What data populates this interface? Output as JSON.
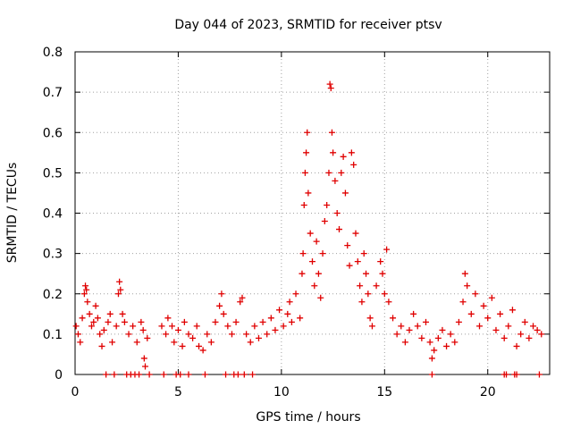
{
  "chart_data": {
    "type": "scatter",
    "title": "Day 044 of 2023, SRMTID for receiver ptsv",
    "xlabel": "GPS time / hours",
    "ylabel": "SRMTID / TECUs",
    "xlim": [
      0,
      23
    ],
    "ylim": [
      0,
      0.8
    ],
    "x_ticks": [
      0,
      5,
      10,
      15,
      20
    ],
    "x_tick_labels": [
      "0",
      "5",
      "10",
      "15",
      "20"
    ],
    "y_ticks": [
      0,
      0.1,
      0.2,
      0.3,
      0.4,
      0.5,
      0.6,
      0.7,
      0.8
    ],
    "y_tick_labels": [
      "0",
      "0.1",
      "0.2",
      "0.3",
      "0.4",
      "0.5",
      "0.6",
      "0.7",
      "0.8"
    ],
    "grid": true,
    "marker": "plus",
    "color": "#e00000",
    "series": [
      {
        "name": "SRMTID",
        "points": [
          [
            0.05,
            0.12
          ],
          [
            0.15,
            0.1
          ],
          [
            0.25,
            0.08
          ],
          [
            0.35,
            0.14
          ],
          [
            0.45,
            0.2
          ],
          [
            0.5,
            0.22
          ],
          [
            0.55,
            0.21
          ],
          [
            0.6,
            0.18
          ],
          [
            0.7,
            0.15
          ],
          [
            0.8,
            0.12
          ],
          [
            0.9,
            0.13
          ],
          [
            1.0,
            0.17
          ],
          [
            1.1,
            0.14
          ],
          [
            1.2,
            0.1
          ],
          [
            1.3,
            0.07
          ],
          [
            1.4,
            0.11
          ],
          [
            1.6,
            0.13
          ],
          [
            1.7,
            0.15
          ],
          [
            1.8,
            0.08
          ],
          [
            2.0,
            0.12
          ],
          [
            2.1,
            0.2
          ],
          [
            2.15,
            0.23
          ],
          [
            2.2,
            0.21
          ],
          [
            2.3,
            0.15
          ],
          [
            2.4,
            0.13
          ],
          [
            2.6,
            0.1
          ],
          [
            2.8,
            0.12
          ],
          [
            3.0,
            0.08
          ],
          [
            3.2,
            0.13
          ],
          [
            3.3,
            0.11
          ],
          [
            3.35,
            0.04
          ],
          [
            3.4,
            0.02
          ],
          [
            3.5,
            0.09
          ],
          [
            4.2,
            0.12
          ],
          [
            4.4,
            0.1
          ],
          [
            4.5,
            0.14
          ],
          [
            4.7,
            0.12
          ],
          [
            4.8,
            0.08
          ],
          [
            5.0,
            0.11
          ],
          [
            5.2,
            0.07
          ],
          [
            5.3,
            0.13
          ],
          [
            5.5,
            0.1
          ],
          [
            5.7,
            0.09
          ],
          [
            5.9,
            0.12
          ],
          [
            6.0,
            0.07
          ],
          [
            6.2,
            0.06
          ],
          [
            6.4,
            0.1
          ],
          [
            6.6,
            0.08
          ],
          [
            6.8,
            0.13
          ],
          [
            7.0,
            0.17
          ],
          [
            7.1,
            0.2
          ],
          [
            7.2,
            0.15
          ],
          [
            7.4,
            0.12
          ],
          [
            7.6,
            0.1
          ],
          [
            7.8,
            0.13
          ],
          [
            8.0,
            0.18
          ],
          [
            8.1,
            0.19
          ],
          [
            8.3,
            0.1
          ],
          [
            8.5,
            0.08
          ],
          [
            8.7,
            0.12
          ],
          [
            8.9,
            0.09
          ],
          [
            9.1,
            0.13
          ],
          [
            9.3,
            0.1
          ],
          [
            9.5,
            0.14
          ],
          [
            9.7,
            0.11
          ],
          [
            9.9,
            0.16
          ],
          [
            10.1,
            0.12
          ],
          [
            10.3,
            0.15
          ],
          [
            10.4,
            0.18
          ],
          [
            10.5,
            0.13
          ],
          [
            10.7,
            0.2
          ],
          [
            10.9,
            0.14
          ],
          [
            11.0,
            0.25
          ],
          [
            11.05,
            0.3
          ],
          [
            11.1,
            0.42
          ],
          [
            11.15,
            0.5
          ],
          [
            11.2,
            0.55
          ],
          [
            11.25,
            0.6
          ],
          [
            11.3,
            0.45
          ],
          [
            11.4,
            0.35
          ],
          [
            11.5,
            0.28
          ],
          [
            11.6,
            0.22
          ],
          [
            11.7,
            0.33
          ],
          [
            11.8,
            0.25
          ],
          [
            11.9,
            0.19
          ],
          [
            12.0,
            0.3
          ],
          [
            12.1,
            0.38
          ],
          [
            12.2,
            0.42
          ],
          [
            12.3,
            0.5
          ],
          [
            12.35,
            0.72
          ],
          [
            12.4,
            0.71
          ],
          [
            12.45,
            0.6
          ],
          [
            12.5,
            0.55
          ],
          [
            12.6,
            0.48
          ],
          [
            12.7,
            0.4
          ],
          [
            12.8,
            0.36
          ],
          [
            12.9,
            0.5
          ],
          [
            13.0,
            0.54
          ],
          [
            13.1,
            0.45
          ],
          [
            13.2,
            0.32
          ],
          [
            13.3,
            0.27
          ],
          [
            13.4,
            0.55
          ],
          [
            13.5,
            0.52
          ],
          [
            13.6,
            0.35
          ],
          [
            13.7,
            0.28
          ],
          [
            13.8,
            0.22
          ],
          [
            13.9,
            0.18
          ],
          [
            14.0,
            0.3
          ],
          [
            14.1,
            0.25
          ],
          [
            14.2,
            0.2
          ],
          [
            14.3,
            0.14
          ],
          [
            14.4,
            0.12
          ],
          [
            14.6,
            0.22
          ],
          [
            14.8,
            0.28
          ],
          [
            14.9,
            0.25
          ],
          [
            15.0,
            0.2
          ],
          [
            15.1,
            0.31
          ],
          [
            15.2,
            0.18
          ],
          [
            15.4,
            0.14
          ],
          [
            15.6,
            0.1
          ],
          [
            15.8,
            0.12
          ],
          [
            16.0,
            0.08
          ],
          [
            16.2,
            0.11
          ],
          [
            16.4,
            0.15
          ],
          [
            16.6,
            0.12
          ],
          [
            16.8,
            0.09
          ],
          [
            17.0,
            0.13
          ],
          [
            17.2,
            0.08
          ],
          [
            17.3,
            0.04
          ],
          [
            17.4,
            0.06
          ],
          [
            17.6,
            0.09
          ],
          [
            17.8,
            0.11
          ],
          [
            18.0,
            0.07
          ],
          [
            18.2,
            0.1
          ],
          [
            18.4,
            0.08
          ],
          [
            18.6,
            0.13
          ],
          [
            18.8,
            0.18
          ],
          [
            18.9,
            0.25
          ],
          [
            19.0,
            0.22
          ],
          [
            19.2,
            0.15
          ],
          [
            19.4,
            0.2
          ],
          [
            19.6,
            0.12
          ],
          [
            19.8,
            0.17
          ],
          [
            20.0,
            0.14
          ],
          [
            20.2,
            0.19
          ],
          [
            20.4,
            0.11
          ],
          [
            20.6,
            0.15
          ],
          [
            20.8,
            0.09
          ],
          [
            21.0,
            0.12
          ],
          [
            21.2,
            0.16
          ],
          [
            21.4,
            0.07
          ],
          [
            21.6,
            0.1
          ],
          [
            21.8,
            0.13
          ],
          [
            22.0,
            0.09
          ],
          [
            22.2,
            0.12
          ],
          [
            22.4,
            0.11
          ],
          [
            22.6,
            0.1
          ],
          [
            1.5,
            0
          ],
          [
            1.9,
            0
          ],
          [
            2.5,
            0
          ],
          [
            2.7,
            0
          ],
          [
            2.9,
            0
          ],
          [
            3.1,
            0
          ],
          [
            3.6,
            0
          ],
          [
            4.3,
            0
          ],
          [
            4.9,
            0
          ],
          [
            5.1,
            0
          ],
          [
            5.5,
            0
          ],
          [
            6.3,
            0
          ],
          [
            7.3,
            0
          ],
          [
            7.7,
            0
          ],
          [
            7.9,
            0
          ],
          [
            8.2,
            0
          ],
          [
            8.6,
            0
          ],
          [
            17.3,
            0
          ],
          [
            20.8,
            0
          ],
          [
            20.9,
            0
          ],
          [
            21.3,
            0
          ],
          [
            21.4,
            0
          ],
          [
            22.5,
            0
          ]
        ]
      }
    ]
  }
}
